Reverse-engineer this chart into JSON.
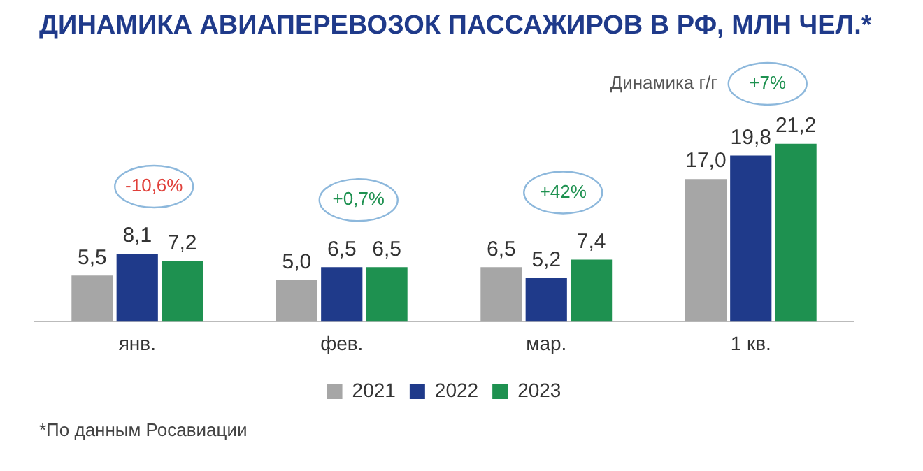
{
  "chart_data": {
    "type": "bar",
    "title": "ДИНАМИКА АВИАПЕРЕВОЗОК ПАССАЖИРОВ В РФ, МЛН ЧЕЛ.*",
    "categories": [
      "янв.",
      "фев.",
      "мар.",
      "1 кв."
    ],
    "series": [
      {
        "name": "2021",
        "color": "#a6a6a6",
        "values": [
          5.5,
          5.0,
          6.5,
          17.0
        ],
        "value_labels": [
          "5,5",
          "5,0",
          "6,5",
          "17,0"
        ]
      },
      {
        "name": "2022",
        "color": "#1f3a8a",
        "values": [
          8.1,
          6.5,
          5.2,
          19.8
        ],
        "value_labels": [
          "8,1",
          "6,5",
          "5,2",
          "19,8"
        ]
      },
      {
        "name": "2023",
        "color": "#1e9150",
        "values": [
          7.2,
          6.5,
          7.4,
          21.2
        ],
        "value_labels": [
          "7,2",
          "6,5",
          "7,4",
          "21,2"
        ]
      }
    ],
    "legend": "bottom",
    "grid": false,
    "annotations": [
      "-10,6%",
      "+0,7%",
      "+42%",
      "+7%",
      "Динамика г/г",
      "*По данным Росавиации"
    ]
  }
}
